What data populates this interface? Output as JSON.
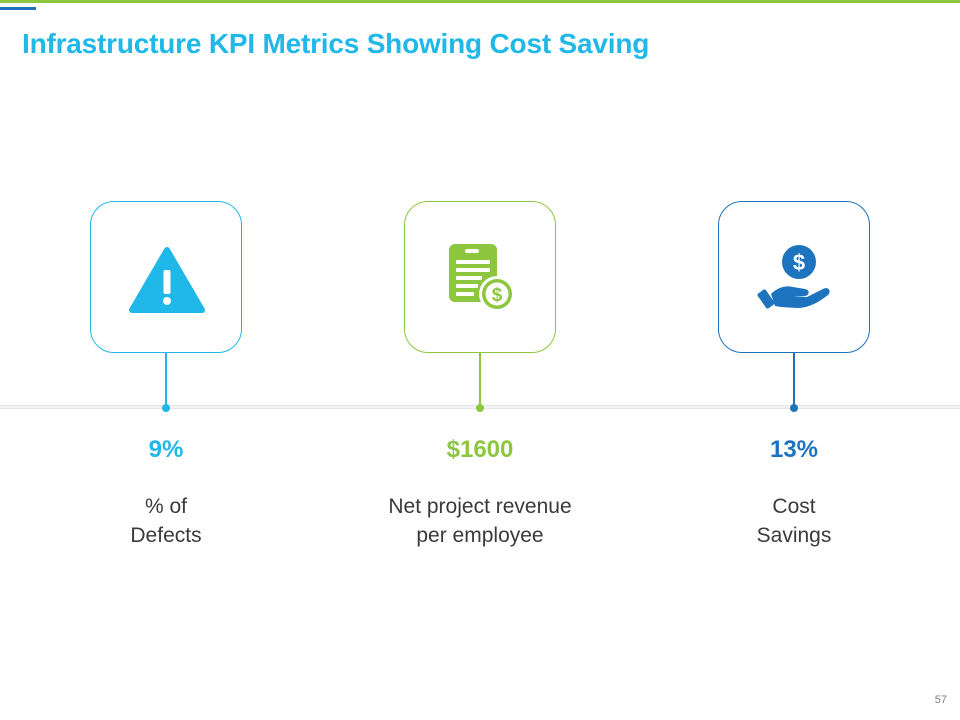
{
  "slide": {
    "title": "Infrastructure KPI Metrics Showing Cost Saving",
    "page_number": "57"
  },
  "colors": {
    "title": "#1fb8e8",
    "cyan": "#1fb8e8",
    "green": "#8dc63f",
    "blue": "#1e73be",
    "top_line": "#8dc63f",
    "top_accent": "#1e73be"
  },
  "kpis": [
    {
      "icon": "warning-icon",
      "value": "9%",
      "label_line1": "% of",
      "label_line2": "Defects",
      "color": "#1fb8e8"
    },
    {
      "icon": "invoice-dollar-icon",
      "value": "$1600",
      "label_line1": "Net project revenue",
      "label_line2": "per employee",
      "color": "#8dc63f"
    },
    {
      "icon": "hand-dollar-icon",
      "value": "13%",
      "label_line1": "Cost",
      "label_line2": "Savings",
      "color": "#1e73be"
    }
  ]
}
